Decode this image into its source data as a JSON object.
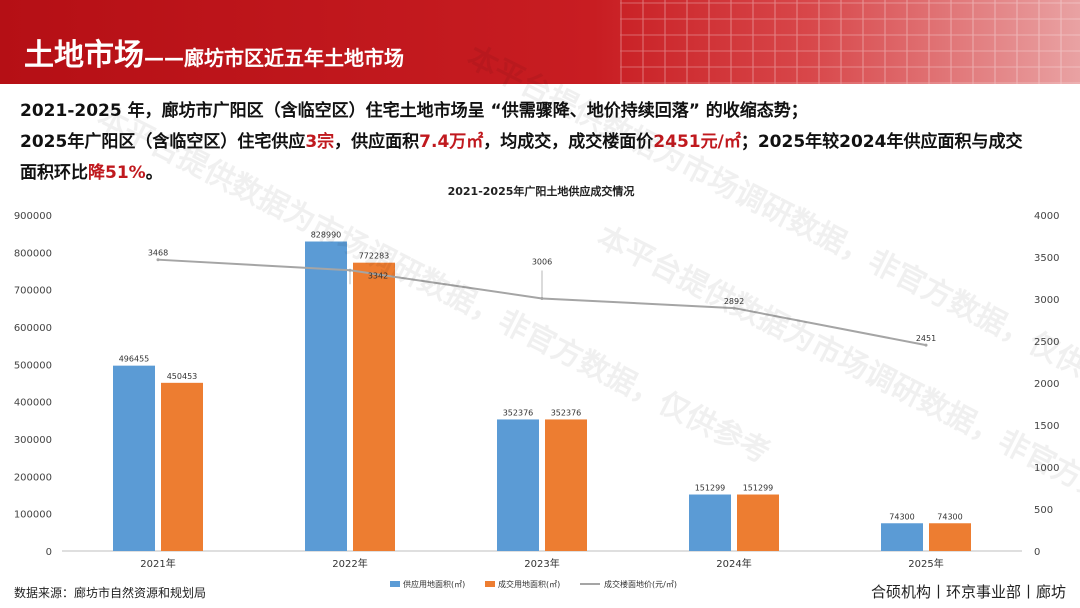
{
  "header": {
    "title_main": "土地市场",
    "title_sub": "——廊坊市区近五年土地市场"
  },
  "summary": {
    "line1": "2021-2025 年，廊坊市广阳区（含临空区）住宅土地市场呈 “供需骤降、地价持续回落” 的收缩态势；",
    "line2_a": "2025年广阳区（含临空区）住宅供应",
    "line2_b": "3宗",
    "line2_c": "，供应面积",
    "line2_d": "7.4万㎡",
    "line2_e": "，均成交，成交楼面价",
    "line2_f": "2451元/㎡",
    "line2_g": "；2025年较2024年供应面积与成交",
    "line3_a": "面积环比",
    "line3_b": "降51%",
    "line3_c": "。"
  },
  "watermark": "本平台提供数据为市场调研数据，非官方数据，仅供参考",
  "chart_data": {
    "type": "bar",
    "title": "2021-2025年广阳土地供应成交情况",
    "categories": [
      "2021年",
      "2022年",
      "2023年",
      "2024年",
      "2025年"
    ],
    "series": [
      {
        "name": "供应用地面积(㎡)",
        "type": "bar",
        "axis": "left",
        "color": "#5b9bd5",
        "values": [
          496455,
          828990,
          352376,
          151299,
          74300
        ]
      },
      {
        "name": "成交用地面积(㎡)",
        "type": "bar",
        "axis": "left",
        "color": "#ed7d31",
        "values": [
          450453,
          772283,
          352376,
          151299,
          74300
        ]
      },
      {
        "name": "成交楼面地价(元/㎡)",
        "type": "line",
        "axis": "right",
        "color": "#a5a5a5",
        "values": [
          3468,
          3342,
          3006,
          2892,
          2451
        ]
      }
    ],
    "y_left": {
      "min": 0,
      "max": 900000,
      "ticks": [
        0,
        100000,
        200000,
        300000,
        400000,
        500000,
        600000,
        700000,
        800000,
        900000
      ]
    },
    "y_right": {
      "min": 0,
      "max": 4000,
      "ticks": [
        0,
        500,
        1000,
        1500,
        2000,
        2500,
        3000,
        3500,
        4000
      ]
    },
    "legend_position": "bottom",
    "grid": false
  },
  "footer": {
    "source": "数据来源：廊坊市自然资源和规划局",
    "org": "合硕机构丨环京事业部丨廊坊"
  }
}
